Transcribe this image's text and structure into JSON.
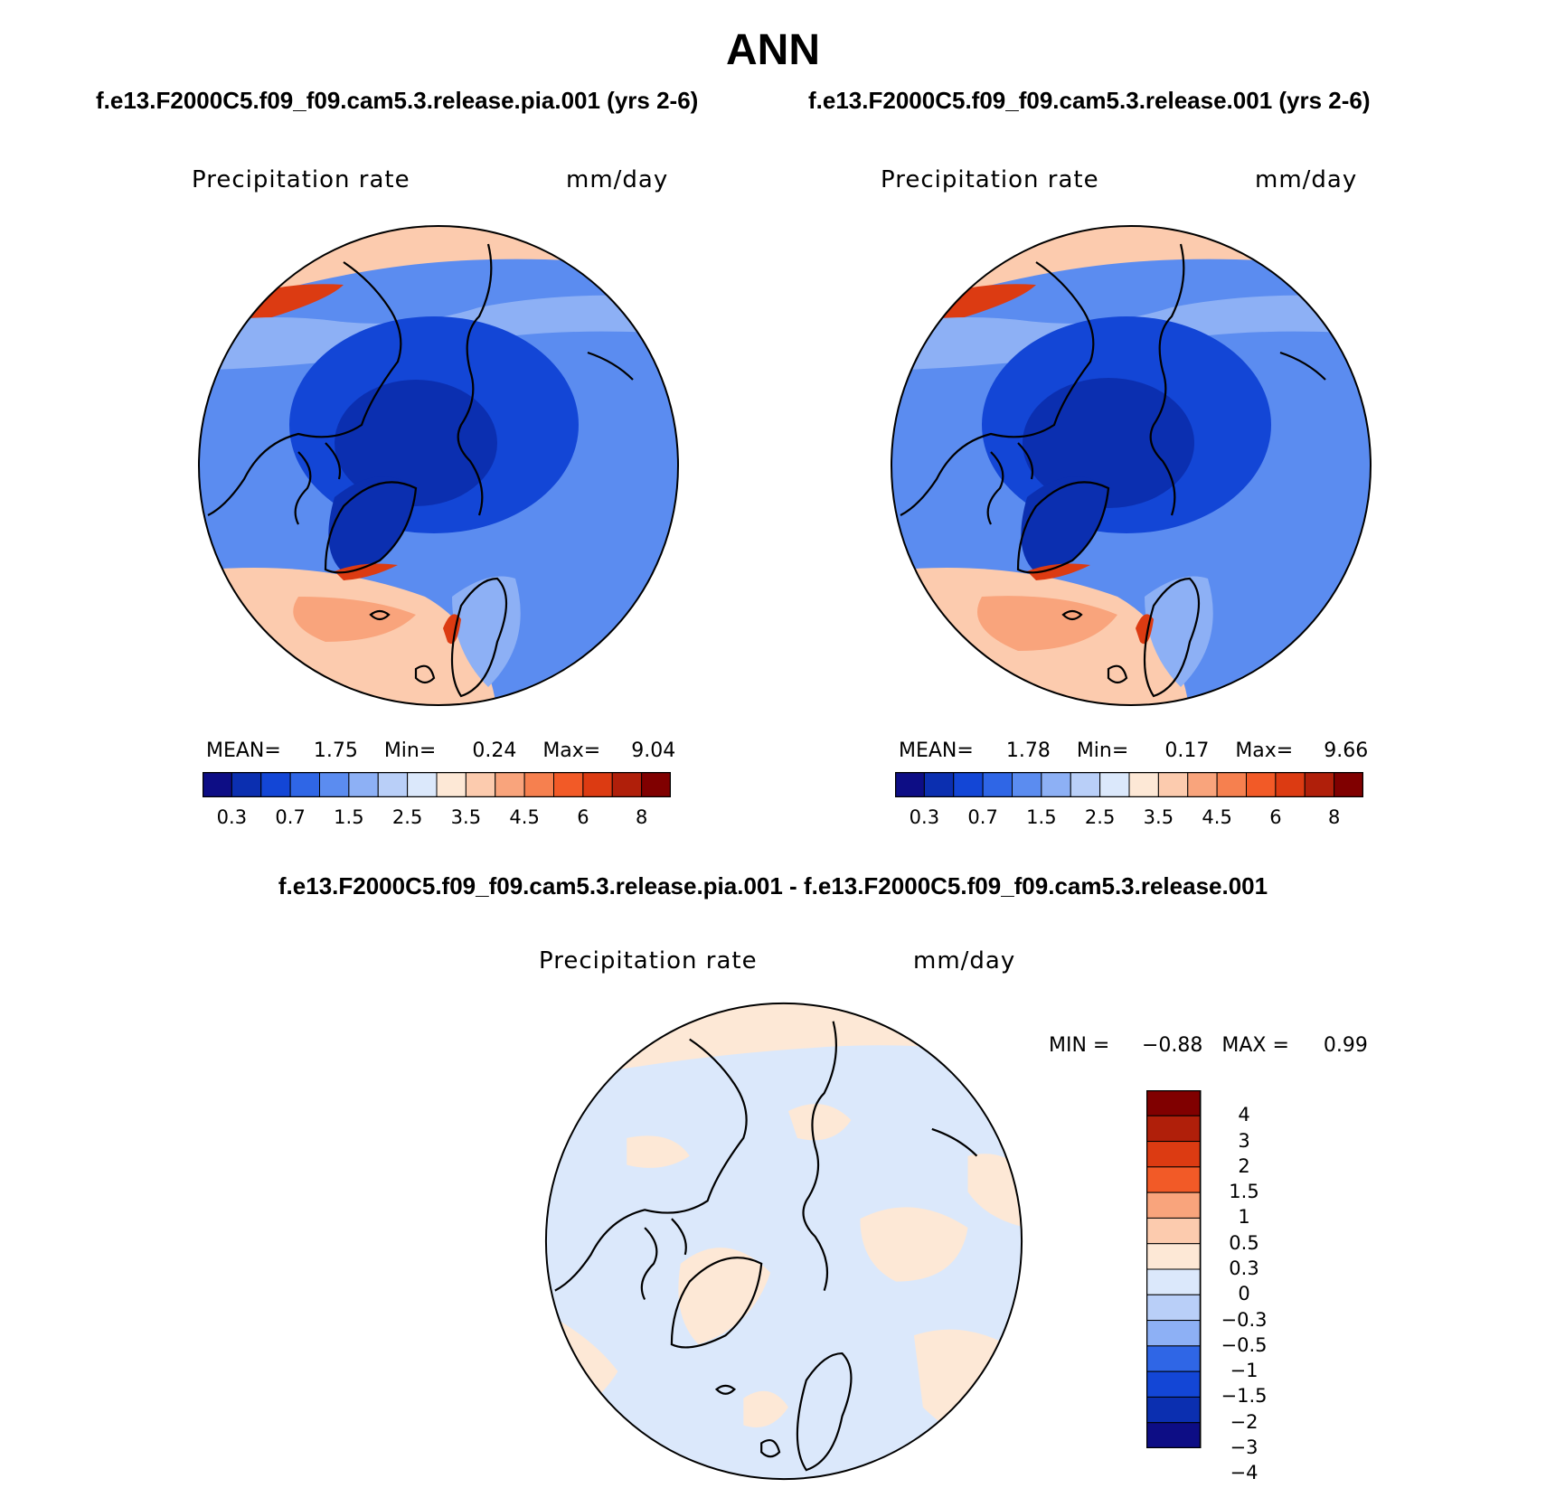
{
  "page": {
    "title": "ANN",
    "diff_title": "f.e13.F2000C5.f09_f09.cam5.3.release.pia.001 - f.e13.F2000C5.f09_f09.cam5.3.release.001"
  },
  "panels": [
    {
      "case_title": "f.e13.F2000C5.f09_f09.cam5.3.release.pia.001 (yrs 2-6)",
      "variable": "Precipitation rate",
      "units": "mm/day",
      "stats": {
        "mean_label": "MEAN=",
        "mean": "1.75",
        "min_label": "Min=",
        "min": "0.24",
        "max_label": "Max=",
        "max": "9.04"
      }
    },
    {
      "case_title": "f.e13.F2000C5.f09_f09.cam5.3.release.001 (yrs 2-6)",
      "variable": "Precipitation rate",
      "units": "mm/day",
      "stats": {
        "mean_label": "MEAN=",
        "mean": "1.78",
        "min_label": "Min=",
        "min": "0.17",
        "max_label": "Max=",
        "max": "9.66"
      }
    }
  ],
  "diff_panel": {
    "variable": "Precipitation rate",
    "units": "mm/day",
    "stats": {
      "min_label": "MIN =",
      "min": "−0.88",
      "max_label": "MAX =",
      "max": "0.99"
    }
  },
  "abs_colorbar": {
    "colors": [
      "#0d0d85",
      "#0b2fb0",
      "#1346d6",
      "#2f66e6",
      "#5b8cf0",
      "#8db0f5",
      "#b9cff8",
      "#dbe8fb",
      "#fde8d6",
      "#fccbae",
      "#f9a47c",
      "#f6804f",
      "#f25a27",
      "#dc3b12",
      "#b01f0a",
      "#800000"
    ],
    "ticks": [
      "0.3",
      "0.7",
      "1.5",
      "2.5",
      "3.5",
      "4.5",
      "6",
      "8"
    ]
  },
  "diff_colorbar": {
    "colors_top_to_bottom": [
      "#800000",
      "#b01f0a",
      "#dc3b12",
      "#f25a27",
      "#f9a47c",
      "#fccbae",
      "#fde8d6",
      "#dbe8fb",
      "#b9cff8",
      "#8db0f5",
      "#2f66e6",
      "#1346d6",
      "#0b2fb0",
      "#0d0d85"
    ],
    "ticks": [
      "4",
      "3",
      "2",
      "1.5",
      "1",
      "0.5",
      "0.3",
      "0",
      "−0.3",
      "−0.5",
      "−1",
      "−1.5",
      "−2",
      "−3",
      "−4"
    ]
  },
  "map_colors": {
    "ocean_mid": "#5b8cf0",
    "arctic": "#1346d6",
    "deep": "#0b2fb0",
    "warm_low": "#fccbae",
    "warm_mid": "#f9a47c",
    "storm": "#dc3b12",
    "diff_base": "#dbe8fb",
    "diff_pos": "#fde8d6"
  }
}
